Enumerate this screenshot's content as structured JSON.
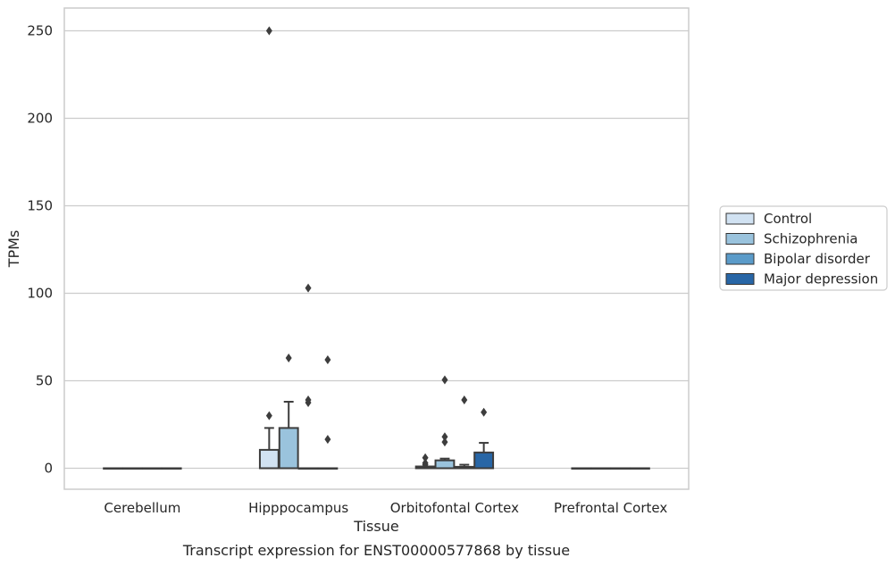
{
  "chart_data": {
    "type": "box",
    "title": "Transcript expression for ENST00000577868 by tissue",
    "xlabel": "Tissue",
    "ylabel": "TPMs",
    "ylim": [
      -12,
      263
    ],
    "yticks": [
      0,
      50,
      100,
      150,
      200,
      250
    ],
    "grid": "horizontal",
    "legend_position": "right",
    "categories": [
      "Cerebellum",
      "Hipppocampus",
      "Orbitofontal Cortex",
      "Prefrontal Cortex"
    ],
    "series": [
      {
        "name": "Control",
        "color": "#d1e2f2",
        "boxes": [
          {
            "q1": 0,
            "median": 0,
            "q3": 0,
            "whisker_low": 0,
            "whisker_high": 0,
            "outliers": []
          },
          {
            "q1": 0,
            "median": 0,
            "q3": 10.5,
            "whisker_low": 0,
            "whisker_high": 23,
            "outliers": [
              30,
              250
            ]
          },
          {
            "q1": 0,
            "median": 0,
            "q3": 1,
            "whisker_low": 0,
            "whisker_high": 1,
            "outliers": [
              2,
              3,
              6
            ]
          },
          {
            "q1": 0,
            "median": 0,
            "q3": 0,
            "whisker_low": 0,
            "whisker_high": 0,
            "outliers": []
          }
        ]
      },
      {
        "name": "Schizophrenia",
        "color": "#9ac3dd",
        "boxes": [
          {
            "q1": 0,
            "median": 0,
            "q3": 0,
            "whisker_low": 0,
            "whisker_high": 0,
            "outliers": []
          },
          {
            "q1": 0,
            "median": 0,
            "q3": 23,
            "whisker_low": 0,
            "whisker_high": 38,
            "outliers": [
              63
            ]
          },
          {
            "q1": 0,
            "median": 0,
            "q3": 4.5,
            "whisker_low": 0,
            "whisker_high": 5.5,
            "outliers": [
              15,
              18,
              50.5
            ]
          },
          {
            "q1": 0,
            "median": 0,
            "q3": 0,
            "whisker_low": 0,
            "whisker_high": 0,
            "outliers": []
          }
        ]
      },
      {
        "name": "Bipolar disorder",
        "color": "#5b9bc9",
        "boxes": [
          {
            "q1": 0,
            "median": 0,
            "q3": 0,
            "whisker_low": 0,
            "whisker_high": 0,
            "outliers": []
          },
          {
            "q1": 0,
            "median": 0,
            "q3": 0,
            "whisker_low": 0,
            "whisker_high": 0,
            "outliers": [
              37.5,
              39,
              103
            ]
          },
          {
            "q1": 0,
            "median": 0,
            "q3": 0.8,
            "whisker_low": 0,
            "whisker_high": 2,
            "outliers": [
              39
            ]
          },
          {
            "q1": 0,
            "median": 0,
            "q3": 0,
            "whisker_low": 0,
            "whisker_high": 0,
            "outliers": []
          }
        ]
      },
      {
        "name": "Major depression",
        "color": "#2866a6",
        "boxes": [
          {
            "q1": 0,
            "median": 0,
            "q3": 0,
            "whisker_low": 0,
            "whisker_high": 0,
            "outliers": []
          },
          {
            "q1": 0,
            "median": 0,
            "q3": 0,
            "whisker_low": 0,
            "whisker_high": 0,
            "outliers": [
              16.5,
              62
            ]
          },
          {
            "q1": 0,
            "median": 0,
            "q3": 9,
            "whisker_low": 0,
            "whisker_high": 14.5,
            "outliers": [
              32
            ]
          },
          {
            "q1": 0,
            "median": 0,
            "q3": 0,
            "whisker_low": 0,
            "whisker_high": 0,
            "outliers": []
          }
        ]
      }
    ]
  }
}
